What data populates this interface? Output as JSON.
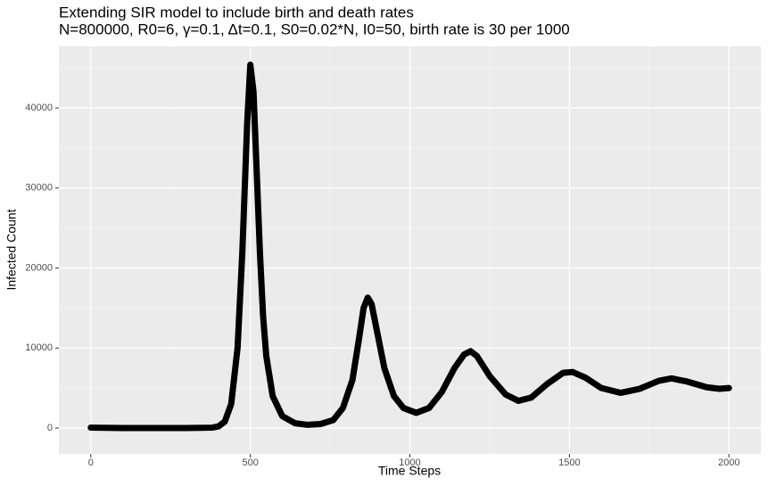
{
  "chart_data": {
    "type": "line",
    "title": "Extending SIR model to include birth and death rates",
    "subtitle": "N=800000, R0=6, γ=0.1, Δt=0.1, S0=0.02*N, I0=50, birth rate is 30 per 1000",
    "x_label": "Time Steps",
    "y_label": "Infected Count",
    "x": [
      0,
      100,
      200,
      300,
      380,
      400,
      420,
      440,
      460,
      475,
      490,
      500,
      510,
      520,
      530,
      540,
      550,
      570,
      600,
      640,
      680,
      720,
      760,
      790,
      820,
      840,
      855,
      868,
      880,
      900,
      920,
      950,
      980,
      1020,
      1060,
      1100,
      1140,
      1170,
      1190,
      1210,
      1250,
      1300,
      1340,
      1380,
      1430,
      1480,
      1510,
      1550,
      1600,
      1660,
      1720,
      1780,
      1820,
      1870,
      1930,
      1970,
      2000
    ],
    "series": [
      {
        "name": "Infected",
        "color": "#000000",
        "values": [
          50,
          0,
          0,
          0,
          50,
          200,
          800,
          3000,
          10000,
          22000,
          38000,
          45400,
          42000,
          32000,
          22000,
          14000,
          9000,
          4000,
          1500,
          600,
          400,
          500,
          1000,
          2500,
          6000,
          11000,
          15000,
          16300,
          15500,
          11500,
          7500,
          4000,
          2500,
          1900,
          2500,
          4500,
          7500,
          9200,
          9600,
          9000,
          6500,
          4200,
          3400,
          3800,
          5500,
          6900,
          7000,
          6300,
          5000,
          4400,
          4900,
          5900,
          6200,
          5800,
          5100,
          4900,
          5000
        ]
      }
    ],
    "xlim": [
      -100,
      2100
    ],
    "ylim": [
      -3230,
      47690
    ],
    "xticks": [
      0,
      500,
      1000,
      1500,
      2000
    ],
    "yticks": [
      0,
      10000,
      20000,
      30000,
      40000
    ],
    "x_minor_ticks": [
      250,
      750,
      1250,
      1750
    ],
    "y_minor_ticks": [
      5000,
      15000,
      25000,
      35000,
      45000
    ],
    "grid": true
  }
}
